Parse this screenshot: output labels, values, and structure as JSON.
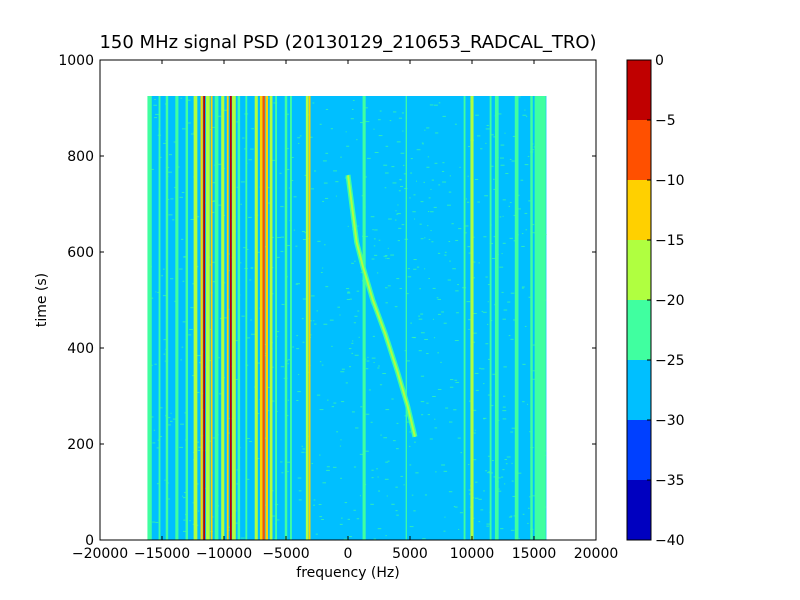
{
  "chart_data": {
    "type": "heatmap",
    "title": "150 MHz signal PSD (20130129_210653_RADCAL_TRO)",
    "xlabel": "frequency (Hz)",
    "ylabel": "time (s)",
    "xlim": [
      -20000,
      20000
    ],
    "ylim": [
      0,
      1000
    ],
    "xticks": [
      -20000,
      -15000,
      -10000,
      -5000,
      0,
      5000,
      10000,
      15000,
      20000
    ],
    "xtick_labels": [
      "−20000",
      "−15000",
      "−10000",
      "−5000",
      "0",
      "5000",
      "10000",
      "15000",
      "20000"
    ],
    "yticks": [
      0,
      200,
      400,
      600,
      800,
      1000
    ],
    "ytick_labels": [
      "0",
      "200",
      "400",
      "600",
      "800",
      "1000"
    ],
    "data_extent": {
      "x": [
        -16000,
        16000
      ],
      "y": [
        0,
        925
      ]
    },
    "colorbar": {
      "levels": [
        -40,
        -35,
        -30,
        -25,
        -20,
        -15,
        -10,
        -5,
        0
      ],
      "labels": [
        "−40",
        "−35",
        "−30",
        "−25",
        "−20",
        "−15",
        "−10",
        "−5",
        "0"
      ],
      "colors": [
        "#0000c0",
        "#0040ff",
        "#00bfff",
        "#40ffa0",
        "#b0ff40",
        "#ffd000",
        "#ff5000",
        "#c00000"
      ]
    },
    "background_level": -27,
    "vertical_lines": [
      {
        "x": -16000,
        "width": 350,
        "level": -22
      },
      {
        "x": -15200,
        "width": 150,
        "level": -22
      },
      {
        "x": -14600,
        "width": 200,
        "level": -22
      },
      {
        "x": -13800,
        "width": 250,
        "level": -22
      },
      {
        "x": -13000,
        "width": 200,
        "level": -22
      },
      {
        "x": -12300,
        "width": 300,
        "level": -18
      },
      {
        "x": -11800,
        "width": 180,
        "level": -12
      },
      {
        "x": -11600,
        "width": 150,
        "level": -3
      },
      {
        "x": -11300,
        "width": 300,
        "level": -18
      },
      {
        "x": -11000,
        "width": 150,
        "level": -12
      },
      {
        "x": -10600,
        "width": 300,
        "level": -22
      },
      {
        "x": -10100,
        "width": 250,
        "level": -18
      },
      {
        "x": -9700,
        "width": 150,
        "level": -12
      },
      {
        "x": -9450,
        "width": 150,
        "level": -3
      },
      {
        "x": -9200,
        "width": 300,
        "level": -18
      },
      {
        "x": -8800,
        "width": 200,
        "level": -22
      },
      {
        "x": -8200,
        "width": 150,
        "level": -22
      },
      {
        "x": -7400,
        "width": 250,
        "level": -18
      },
      {
        "x": -7000,
        "width": 200,
        "level": -12
      },
      {
        "x": -6800,
        "width": 180,
        "level": -8
      },
      {
        "x": -6550,
        "width": 200,
        "level": -12
      },
      {
        "x": -6200,
        "width": 220,
        "level": -18
      },
      {
        "x": -5800,
        "width": 150,
        "level": -22
      },
      {
        "x": -5000,
        "width": 200,
        "level": -22
      },
      {
        "x": -4600,
        "width": 150,
        "level": -22
      },
      {
        "x": -3300,
        "width": 200,
        "level": -18
      },
      {
        "x": -3100,
        "width": 150,
        "level": -12
      },
      {
        "x": 1300,
        "width": 250,
        "level": -22
      },
      {
        "x": 4700,
        "width": 100,
        "level": -22
      },
      {
        "x": 9400,
        "width": 150,
        "level": -22
      },
      {
        "x": 10000,
        "width": 250,
        "level": -18
      },
      {
        "x": 11500,
        "width": 150,
        "level": -22
      },
      {
        "x": 12000,
        "width": 300,
        "level": -22
      },
      {
        "x": 13600,
        "width": 300,
        "level": -22
      },
      {
        "x": 14800,
        "width": 200,
        "level": -22
      },
      {
        "x": 15500,
        "width": 900,
        "level": -22
      }
    ],
    "drifting_signal": {
      "level": -18,
      "points": [
        {
          "x": 0,
          "y": 760
        },
        {
          "x": 300,
          "y": 700
        },
        {
          "x": 700,
          "y": 620
        },
        {
          "x": 1200,
          "y": 570
        },
        {
          "x": 2000,
          "y": 500
        },
        {
          "x": 3000,
          "y": 430
        },
        {
          "x": 4000,
          "y": 350
        },
        {
          "x": 4800,
          "y": 280
        },
        {
          "x": 5400,
          "y": 215
        }
      ]
    }
  }
}
